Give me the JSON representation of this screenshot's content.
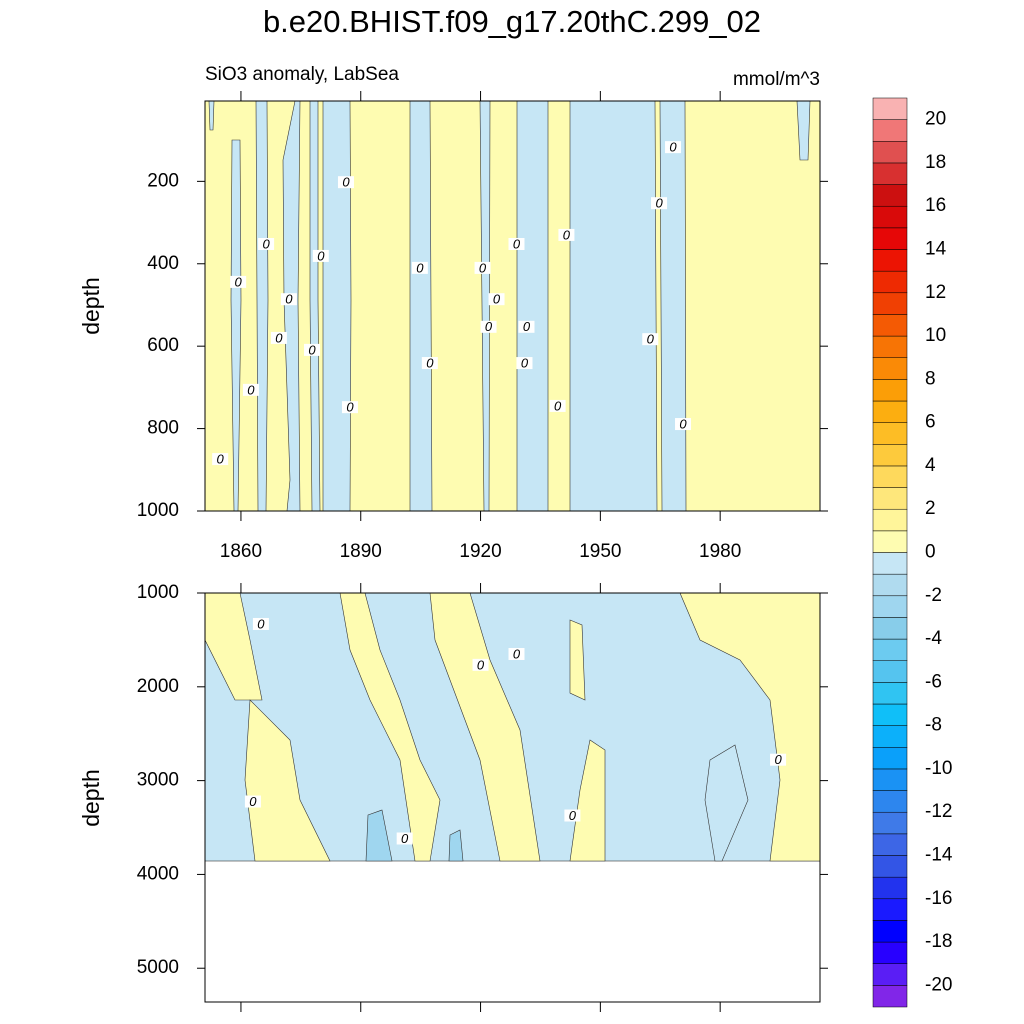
{
  "chart_data": [
    {
      "type": "contour",
      "title": "b.e20.BHIST.f09_g17.20thC.299_02",
      "subtitle": "SiO3 anomaly, LabSea",
      "units": "mmol/m^3",
      "y_label": "depth",
      "xlim": [
        1851,
        2005
      ],
      "xticks": [
        1860,
        1890,
        1920,
        1950,
        1980
      ],
      "ylim": [
        1000,
        5
      ],
      "yticks": [
        200,
        400,
        600,
        800,
        1000
      ],
      "contour_labels": {
        "text": "0",
        "x": [
          1854.8,
          1859.3,
          1862.5,
          1866.3,
          1869.5,
          1872,
          1877.8,
          1880,
          1886.3,
          1887.3,
          1904.8,
          1907.3,
          1920.5,
          1922,
          1924,
          1929,
          1931,
          1931.5,
          1939.3,
          1941.5,
          1962.5,
          1964.7,
          1968.2,
          1970.7
        ],
        "y": [
          874,
          444,
          706,
          352,
          580,
          486,
          609,
          381,
          202,
          748,
          410,
          641,
          410,
          553,
          486,
          352,
          641,
          553,
          745,
          330,
          583,
          253,
          117,
          789
        ]
      }
    },
    {
      "type": "contour",
      "y_label": "depth",
      "xlim": [
        1851,
        2005
      ],
      "xticks": [
        1860,
        1890,
        1920,
        1950,
        1980
      ],
      "ylim": [
        5360,
        1000
      ],
      "yticks": [
        1000,
        2000,
        3000,
        4000,
        5000
      ],
      "contour_labels": {
        "text": "0",
        "x": [
          1865,
          1920,
          1929,
          1863,
          1901,
          1943,
          1994.5
        ],
        "y": [
          1330,
          1766,
          1650,
          3223,
          3617,
          3372,
          2777
        ]
      }
    },
    {
      "type": "colorbar",
      "levels": [
        -20,
        -19,
        -18,
        -17,
        -16,
        -15,
        -14,
        -13,
        -12,
        -11,
        -10,
        -9,
        -8,
        -7,
        -6,
        -5,
        -4,
        -3,
        -2,
        -1,
        0,
        1,
        2,
        3,
        4,
        5,
        6,
        7,
        8,
        9,
        10,
        11,
        12,
        13,
        14,
        15,
        16,
        17,
        18,
        19,
        20
      ],
      "ticks": [
        -20,
        -18,
        -16,
        -14,
        -12,
        -10,
        -8,
        -6,
        -4,
        -2,
        0,
        2,
        4,
        6,
        8,
        10,
        12,
        14,
        16,
        18,
        20
      ],
      "colors": [
        "#8126e8",
        "#5a1ef5",
        "#2800ff",
        "#0000ff",
        "#1a1aff",
        "#2233ee",
        "#3355e6",
        "#3d66e6",
        "#3f7ae8",
        "#2d86ee",
        "#1a92f4",
        "#0aa0fa",
        "#0cb0fa",
        "#10bff8",
        "#30c4f2",
        "#55c4ef",
        "#6ccbf0",
        "#88cdea",
        "#9fd6ef",
        "#b0dbef",
        "#c6e6f5",
        "#fefcb1",
        "#fff59a",
        "#fee77b",
        "#fed95c",
        "#fdca3c",
        "#fdbd25",
        "#fcae10",
        "#fb9e07",
        "#fa8a06",
        "#f77405",
        "#f45a04",
        "#f04003",
        "#ee2a02",
        "#ec1403",
        "#e60707",
        "#d90a0a",
        "#cc1010",
        "#d83030",
        "#e05050",
        "#f07777",
        "#f9b2b2"
      ]
    }
  ]
}
